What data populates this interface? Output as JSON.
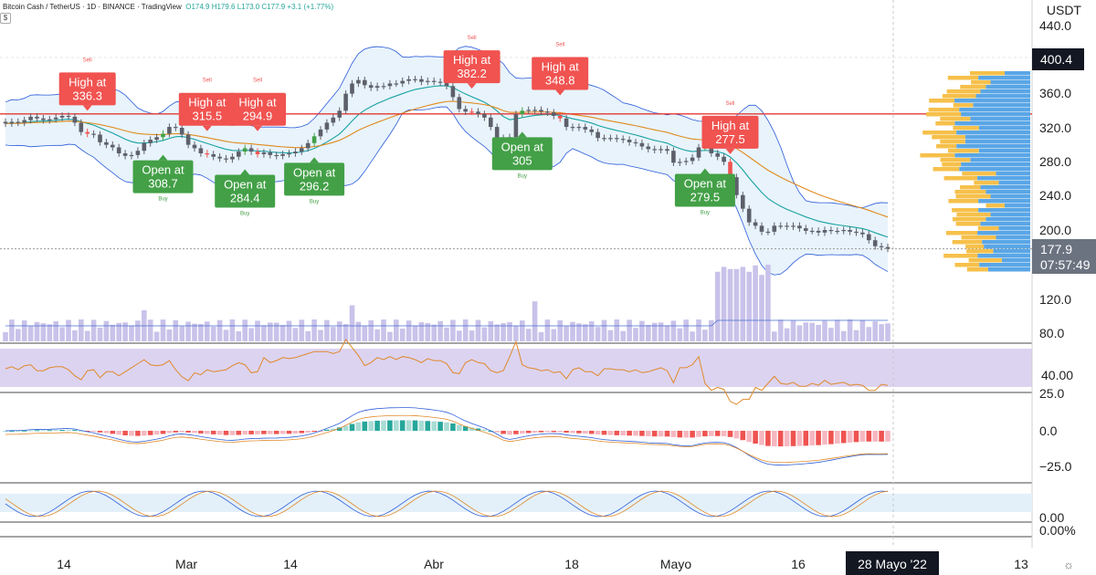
{
  "header": {
    "symbol_line": "Bitcoin Cash / TetherUS · 1D · BINANCE · TradingView",
    "ohlc": "O174.9 H179.6 L173.0 C177.9 +3.1 (+1.77%)",
    "settings_glyph": "$"
  },
  "price_axis": {
    "currency": "USDT",
    "ticks": [
      "440.0",
      "360.0",
      "320.0",
      "280.0",
      "240.0",
      "200.0",
      "120.0",
      "80.0"
    ],
    "highlight_value": "400.4",
    "current_price": "177.9",
    "countdown": "07:57:49"
  },
  "indicator_axes": {
    "rsi_tick": "40.00",
    "macd_ticks": [
      "25.0",
      "0.0",
      "−25.0"
    ],
    "stoch_ticks": [
      "0.00",
      "0.00%"
    ]
  },
  "time_axis": {
    "labels": [
      "14",
      "Mar",
      "14",
      "Abr",
      "18",
      "Mayo",
      "16",
      "13"
    ],
    "current_date": "28 Mayo '22"
  },
  "sell_signals": [
    {
      "title": "High at",
      "value": "336.3",
      "tag": "Sell"
    },
    {
      "title": "High at",
      "value": "315.5",
      "tag": "Sell"
    },
    {
      "title": "High at",
      "value": "294.9",
      "tag": "Sell"
    },
    {
      "title": "High at",
      "value": "382.2",
      "tag": "Sell"
    },
    {
      "title": "High at",
      "value": "348.8",
      "tag": "Sell"
    },
    {
      "title": "High at",
      "value": "277.5",
      "tag": "Sell"
    }
  ],
  "buy_signals": [
    {
      "title": "Open at",
      "value": "308.7",
      "tag": "Buy"
    },
    {
      "title": "Open at",
      "value": "284.4",
      "tag": "Buy"
    },
    {
      "title": "Open at",
      "value": "296.2",
      "tag": "Buy"
    },
    {
      "title": "Open at",
      "value": "305",
      "tag": "Buy"
    },
    {
      "title": "Open at",
      "value": "279.5",
      "tag": "Buy"
    }
  ],
  "colors": {
    "sell": "#f05350",
    "buy": "#43a047",
    "candle": "#5d606b",
    "volume": "#c9c2ea",
    "rsi_bg": "#dcd3f1",
    "rsi_line": "#e0892a",
    "bands": "#2a5bd7",
    "ema_fast": "#17a2a0",
    "ema_slow": "#e08a1e",
    "resistance": "#e53935"
  },
  "footer": {
    "gear_glyph": "☼"
  },
  "chart_data": {
    "type": "candlestick",
    "ticker": "BCHUSDT",
    "interval": "1D",
    "last_close": 177.9,
    "resistance_level": 336.3,
    "closes": [
      325,
      327,
      326,
      329,
      333,
      331,
      329,
      330,
      332,
      334,
      333,
      326,
      315,
      313,
      312,
      303,
      300,
      297,
      290,
      287,
      288,
      293,
      302,
      306,
      309,
      313,
      321,
      320,
      312,
      300,
      296,
      290,
      289,
      286,
      284,
      283,
      286,
      292,
      296,
      292,
      289,
      291,
      288,
      287,
      289,
      290,
      292,
      296,
      302,
      310,
      318,
      326,
      332,
      340,
      360,
      372,
      376,
      370,
      367,
      369,
      369,
      372,
      372,
      375,
      377,
      377,
      374,
      375,
      374,
      373,
      369,
      356,
      342,
      339,
      339,
      336,
      332,
      321,
      308,
      297,
      309,
      336,
      340,
      341,
      341,
      339,
      338,
      334,
      331,
      321,
      320,
      321,
      318,
      315,
      308,
      308,
      308,
      307,
      306,
      303,
      302,
      298,
      295,
      294,
      295,
      293,
      279,
      280,
      281,
      285,
      297,
      297,
      290,
      286,
      280,
      262,
      241,
      225,
      209,
      205,
      198,
      198,
      205,
      205,
      204,
      205,
      202,
      199,
      199,
      197,
      200,
      199,
      199,
      200,
      198,
      197,
      195,
      188,
      181,
      180,
      178
    ],
    "volume_scale": [
      80,
      120
    ]
  }
}
